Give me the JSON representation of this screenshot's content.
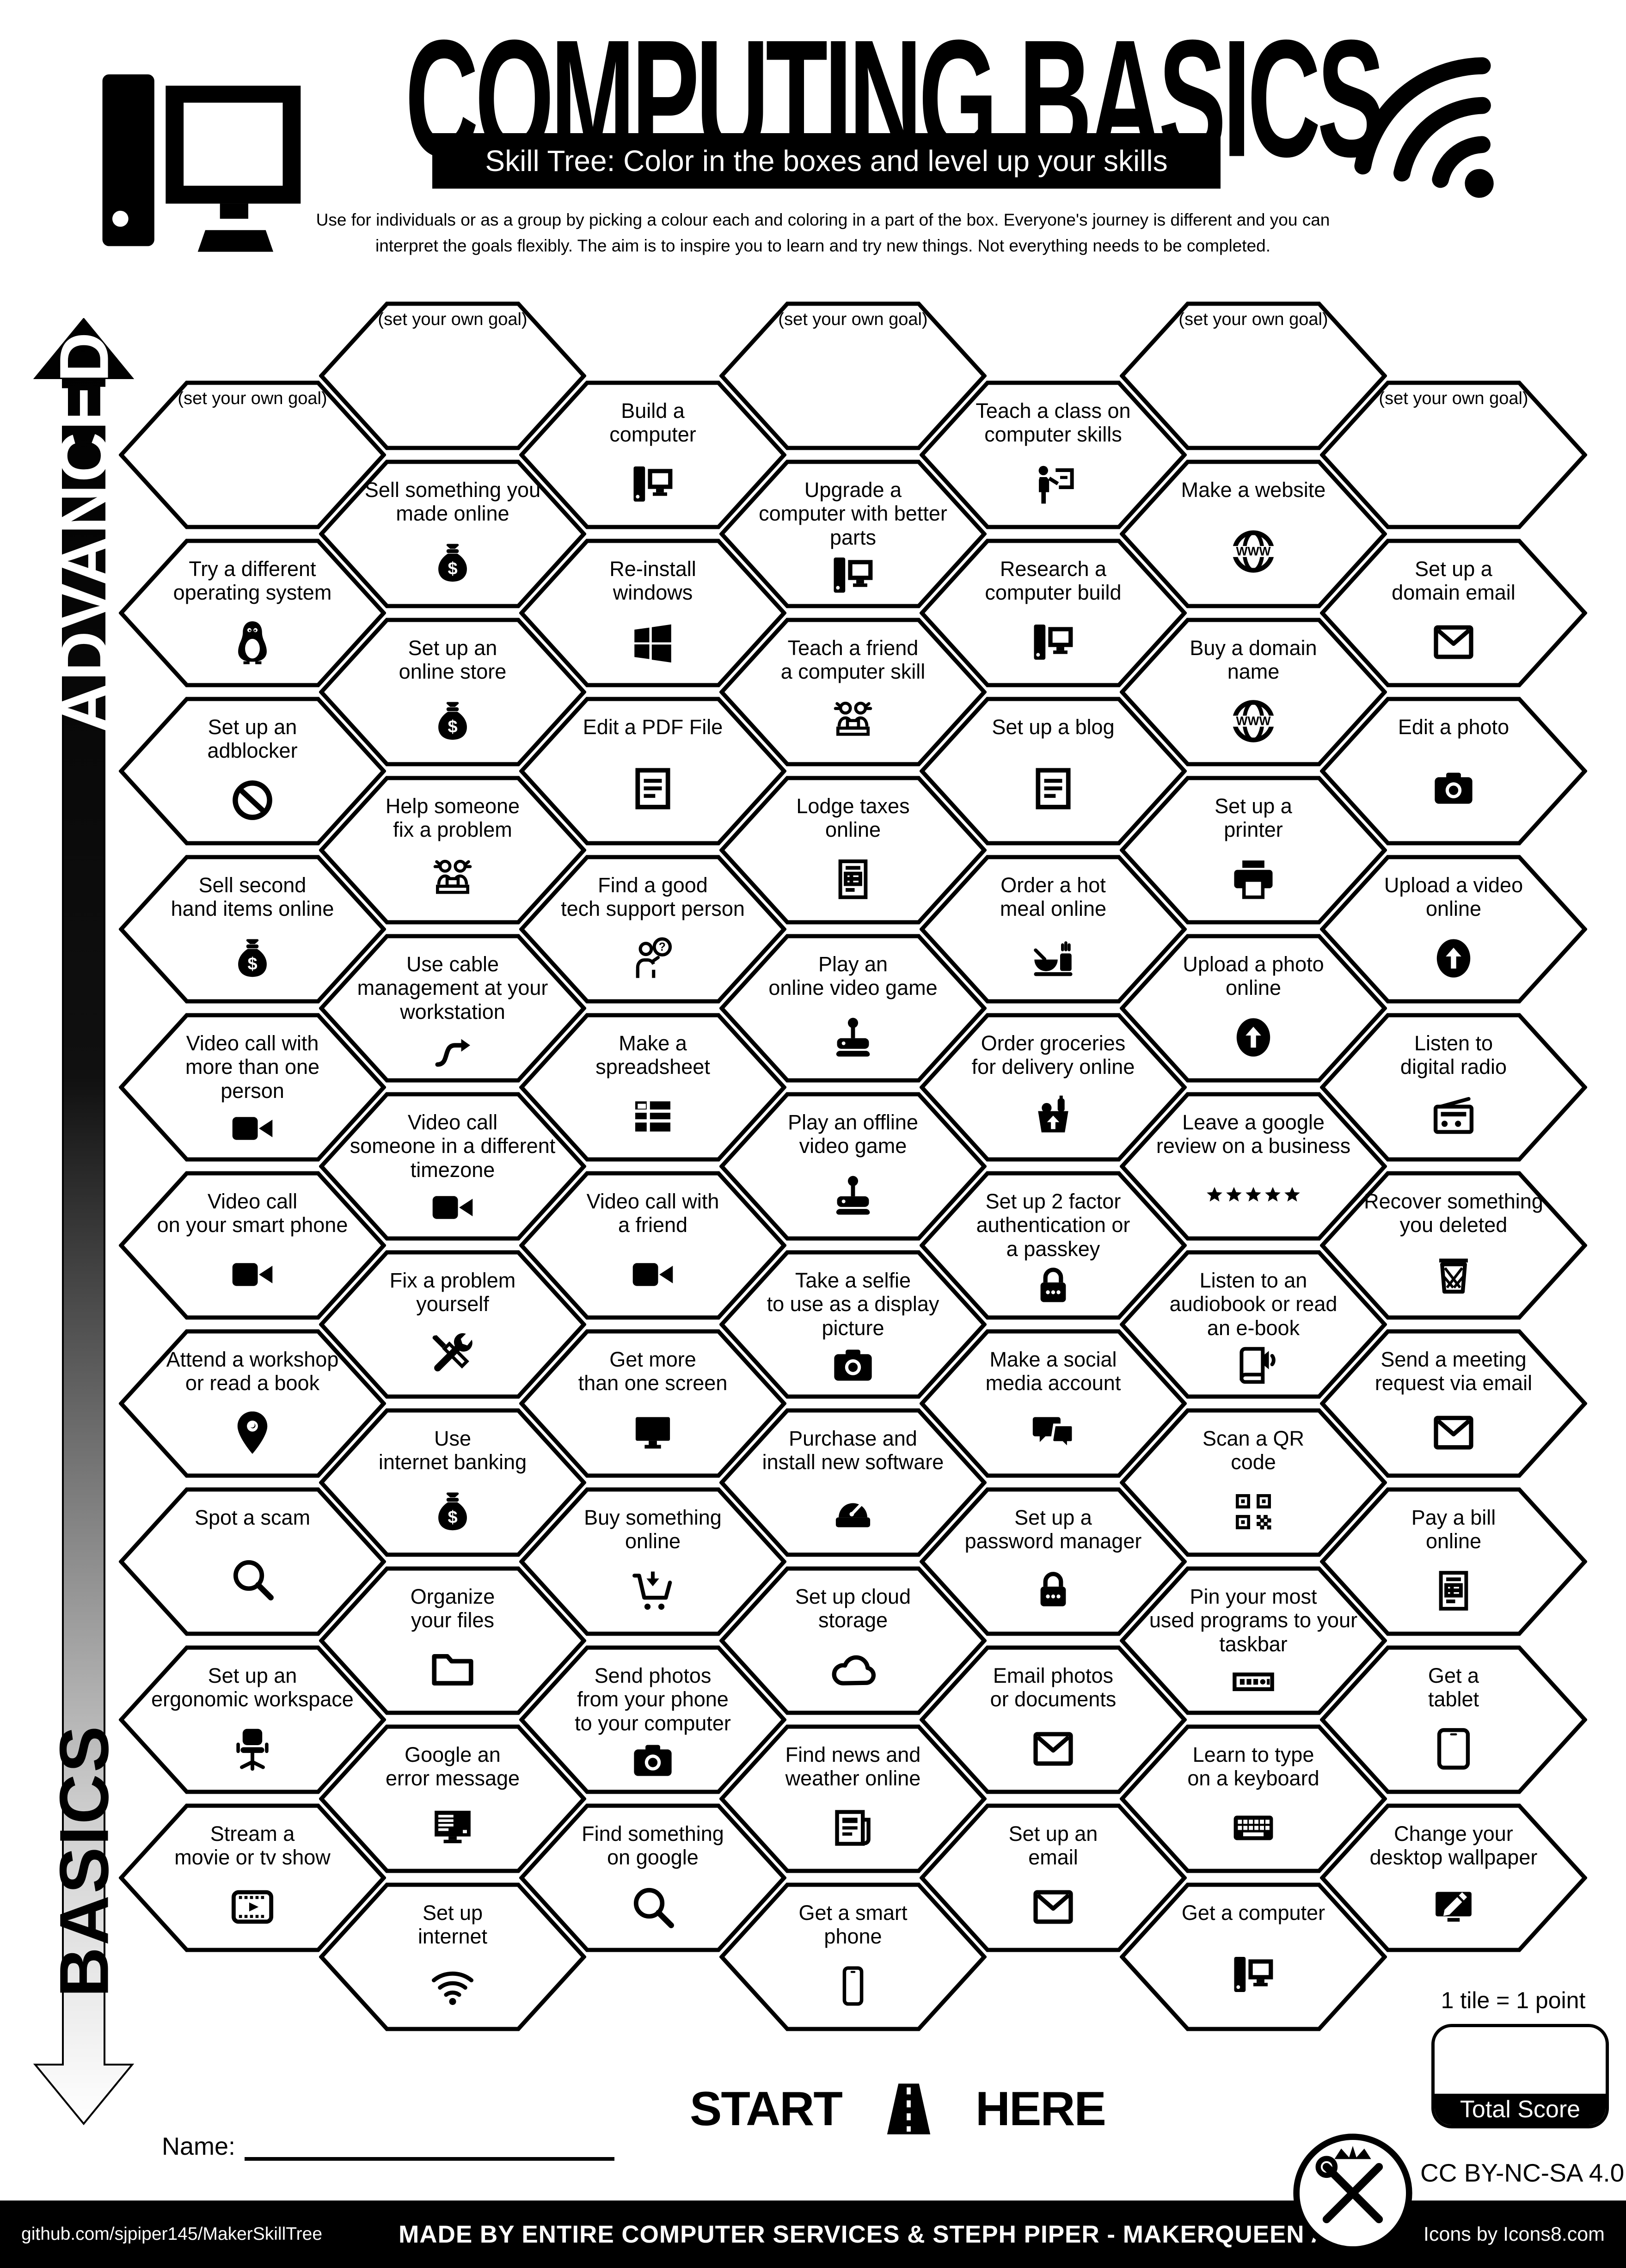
{
  "header": {
    "title": "COMPUTING BASICS",
    "subtitle": "Skill Tree:  Color in the boxes and level up your skills",
    "description": "Use for individuals or as a group by picking a colour each and coloring in a part of the box.  Everyone's journey is different and you can\ninterpret the goals flexibly.  The aim is to inspire you to learn and try new things. Not everything needs to be completed.",
    "left_icon": "desktop-computer",
    "right_icon": "wifi"
  },
  "axis": {
    "top_label": "ADVANCED",
    "bottom_label": "BASICS"
  },
  "grid": {
    "columns": [
      {
        "tiles": [
          {
            "label": "(set your own goal)",
            "icon": null
          },
          {
            "label": "Try a different\noperating system",
            "icon": "penguin"
          },
          {
            "label": "Set up an\nadblocker",
            "icon": "no-sign"
          },
          {
            "label": "Sell second\nhand items online",
            "icon": "money-bag"
          },
          {
            "label": "Video call with\nmore than one\nperson",
            "icon": "video-camera"
          },
          {
            "label": "Video call\non your smart phone",
            "icon": "video-camera"
          },
          {
            "label": "Attend a workshop\nor read a book",
            "icon": "location-pin"
          },
          {
            "label": "Spot a scam",
            "icon": "magnifier"
          },
          {
            "label": "Set up an\nergonomic workspace",
            "icon": "chair"
          },
          {
            "label": "Stream a\nmovie or tv show",
            "icon": "film"
          }
        ]
      },
      {
        "tiles": [
          {
            "label": "(set your own goal)",
            "icon": null
          },
          {
            "label": "Sell something you\nmade online",
            "icon": "money-bag"
          },
          {
            "label": "Set up an\nonline store",
            "icon": "money-bag"
          },
          {
            "label": "Help someone\nfix a problem",
            "icon": "two-people"
          },
          {
            "label": "Use cable\nmanagement at your\nworkstation",
            "icon": "cable"
          },
          {
            "label": "Video call\nsomeone in a different\ntimezone",
            "icon": "video-camera"
          },
          {
            "label": "Fix a problem\nyourself",
            "icon": "tools"
          },
          {
            "label": "Use\ninternet banking",
            "icon": "money-bag"
          },
          {
            "label": "Organize\nyour files",
            "icon": "folder"
          },
          {
            "label": "Google an\nerror message",
            "icon": "monitor-error"
          },
          {
            "label": "Set up\ninternet",
            "icon": "wifi"
          }
        ]
      },
      {
        "tiles": [
          {
            "label": "Build a\ncomputer",
            "icon": "desktop-pc"
          },
          {
            "label": "Re-install\nwindows",
            "icon": "windows"
          },
          {
            "label": "Edit a PDF File",
            "icon": "document"
          },
          {
            "label": "Find a good\ntech support person",
            "icon": "person-question"
          },
          {
            "label": "Make a\nspreadsheet",
            "icon": "spreadsheet"
          },
          {
            "label": "Video call with\na friend",
            "icon": "video-camera"
          },
          {
            "label": "Get more\nthan one screen",
            "icon": "monitor"
          },
          {
            "label": "Buy something\nonline",
            "icon": "cart"
          },
          {
            "label": "Send photos\nfrom your phone\nto your computer",
            "icon": "camera"
          },
          {
            "label": "Find something\non google",
            "icon": "magnifier"
          }
        ]
      },
      {
        "tiles": [
          {
            "label": "(set your own goal)",
            "icon": null
          },
          {
            "label": "Upgrade a\ncomputer with better\nparts",
            "icon": "desktop-pc"
          },
          {
            "label": "Teach a friend\na computer skill",
            "icon": "two-people"
          },
          {
            "label": "Lodge taxes\nonline",
            "icon": "bill"
          },
          {
            "label": "Play an\nonline video game",
            "icon": "joystick"
          },
          {
            "label": "Play an offline\nvideo game",
            "icon": "joystick"
          },
          {
            "label": "Take a selfie\nto use as a display\npicture",
            "icon": "camera"
          },
          {
            "label": "Purchase and\ninstall new software",
            "icon": "install"
          },
          {
            "label": "Set up cloud\nstorage",
            "icon": "cloud"
          },
          {
            "label": "Find news and\nweather online",
            "icon": "newspaper"
          },
          {
            "label": "Get a smart\nphone",
            "icon": "smartphone"
          }
        ]
      },
      {
        "tiles": [
          {
            "label": "Teach a class on\ncomputer skills",
            "icon": "person-presenting"
          },
          {
            "label": "Research a\ncomputer build",
            "icon": "desktop-pc"
          },
          {
            "label": "Set up a blog",
            "icon": "document"
          },
          {
            "label": "Order a hot\nmeal online",
            "icon": "food"
          },
          {
            "label": "Order groceries\nfor delivery online",
            "icon": "grocery"
          },
          {
            "label": "Set up 2 factor\nauthentication or\na passkey",
            "icon": "padlock"
          },
          {
            "label": "Make a social\nmedia account",
            "icon": "chat"
          },
          {
            "label": "Set up a\npassword manager",
            "icon": "padlock"
          },
          {
            "label": "Email photos\nor documents",
            "icon": "envelope"
          },
          {
            "label": "Set up an\nemail",
            "icon": "envelope"
          }
        ]
      },
      {
        "tiles": [
          {
            "label": "(set your own goal)",
            "icon": null
          },
          {
            "label": "Make a website",
            "icon": "globe-www"
          },
          {
            "label": "Buy a domain\nname",
            "icon": "globe-www"
          },
          {
            "label": "Set up a\nprinter",
            "icon": "printer"
          },
          {
            "label": "Upload a photo\nonline",
            "icon": "upload-circle"
          },
          {
            "label": "Leave a google\nreview on a business",
            "icon": "stars"
          },
          {
            "label": "Listen to an\naudiobook or read\nan e-book",
            "icon": "book-audio"
          },
          {
            "label": "Scan a QR\ncode",
            "icon": "qr"
          },
          {
            "label": "Pin your most\nused programs to your\ntaskbar",
            "icon": "taskbar"
          },
          {
            "label": "Learn to type\non a keyboard",
            "icon": "keyboard"
          },
          {
            "label": "Get a computer",
            "icon": "desktop-pc"
          }
        ]
      },
      {
        "tiles": [
          {
            "label": "(set your own goal)",
            "icon": null
          },
          {
            "label": "Set up a\ndomain email",
            "icon": "envelope"
          },
          {
            "label": "Edit a photo",
            "icon": "camera"
          },
          {
            "label": "Upload a video\nonline",
            "icon": "upload-circle"
          },
          {
            "label": "Listen to\ndigital radio",
            "icon": "radio"
          },
          {
            "label": "Recover something\nyou deleted",
            "icon": "trash"
          },
          {
            "label": "Send a meeting\nrequest via email",
            "icon": "envelope"
          },
          {
            "label": "Pay a bill\nonline",
            "icon": "bill"
          },
          {
            "label": "Get a\ntablet",
            "icon": "tablet"
          },
          {
            "label": "Change your\ndesktop wallpaper",
            "icon": "wallpaper-pen"
          }
        ]
      }
    ]
  },
  "start": {
    "start_label": "START",
    "here_label": "HERE",
    "road_icon": "road"
  },
  "name_field": {
    "label": "Name:"
  },
  "score": {
    "note": "1 tile = 1 point",
    "total_label": "Total Score"
  },
  "license": {
    "text": "CC BY-NC-SA 4.0",
    "logo": "makerqueen-logo"
  },
  "footer": {
    "left": "github.com/sjpiper145/MakerSkillTree",
    "center": "MADE BY ENTIRE COMPUTER SERVICES & STEPH PIPER  -  MAKERQUEEN AU",
    "right": "Icons by Icons8.com"
  },
  "colors": {
    "ink": "#000000",
    "paper": "#ffffff"
  }
}
